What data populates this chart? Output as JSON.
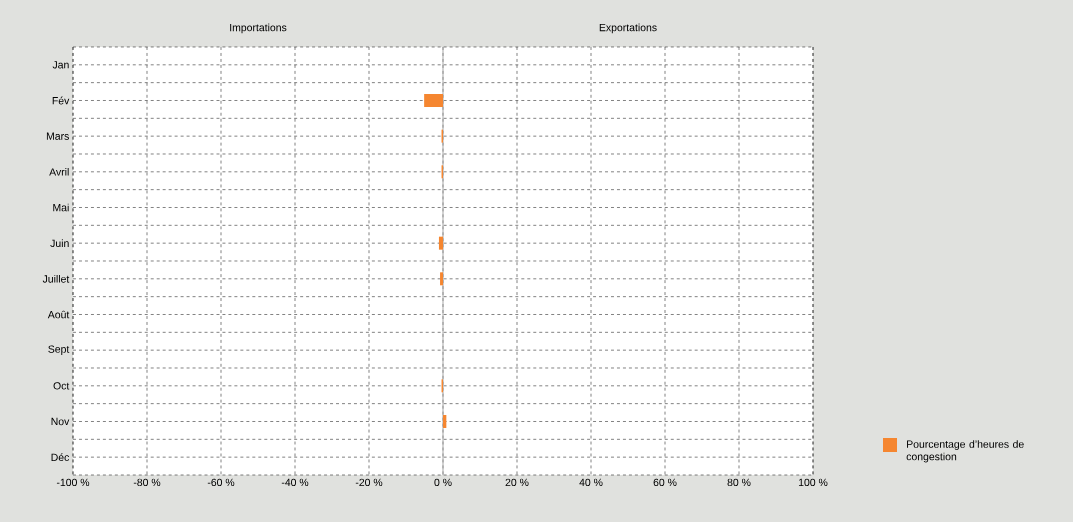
{
  "chart_data": {
    "type": "bar",
    "orientation": "horizontal",
    "annotations": [
      "Importations",
      "Exportations"
    ],
    "categories": [
      "Jan",
      "Fév",
      "Mars",
      "Avril",
      "Mai",
      "Juin",
      "Juillet",
      "Août",
      "Sept",
      "Oct",
      "Nov",
      "Déc"
    ],
    "series": [
      {
        "name": "Pourcentage d’heures de congestion",
        "color": "#f58630",
        "values": [
          0,
          -5.1,
          -0.4,
          -0.4,
          0,
          -1.1,
          -0.8,
          0,
          0,
          -0.4,
          0.9,
          0
        ]
      }
    ],
    "xlim": [
      -100,
      100
    ],
    "xticks": [
      {
        "value": -100,
        "label": "-100 %"
      },
      {
        "value": -80,
        "label": "-80 %"
      },
      {
        "value": -60,
        "label": "-60 %"
      },
      {
        "value": -40,
        "label": "-40 %"
      },
      {
        "value": -20,
        "label": "-20 %"
      },
      {
        "value": 0,
        "label": "0 %"
      },
      {
        "value": 20,
        "label": "20 %"
      },
      {
        "value": 40,
        "label": "40 %"
      },
      {
        "value": 60,
        "label": "60 %"
      },
      {
        "value": 80,
        "label": "80 %"
      },
      {
        "value": 100,
        "label": "100 %"
      }
    ],
    "grid": true,
    "legend": "bottom right"
  }
}
